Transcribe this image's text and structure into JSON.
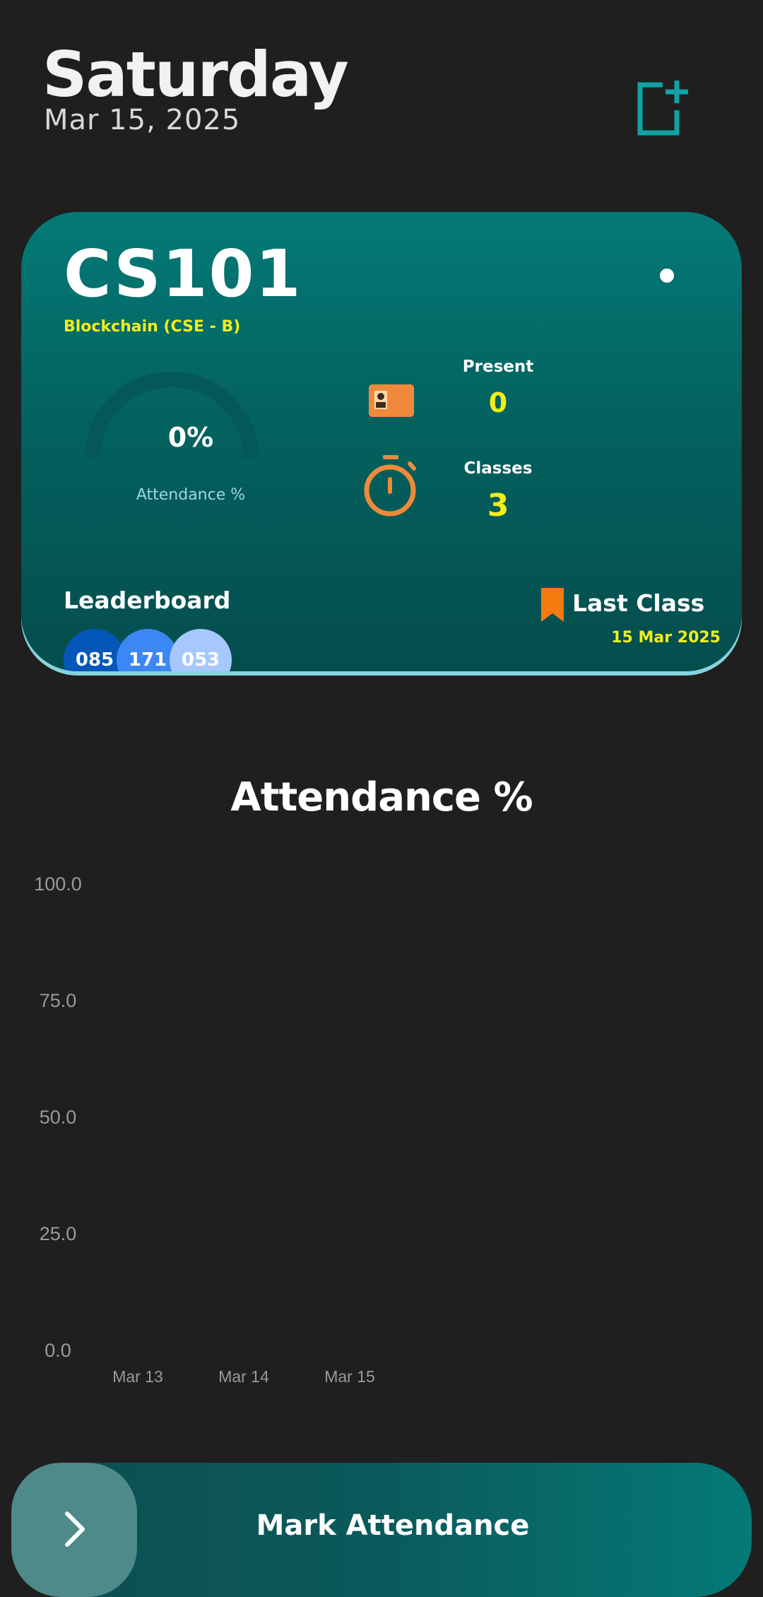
{
  "header": {
    "day": "Saturday",
    "date": "Mar 15, 2025",
    "add_icon": "add-box-icon"
  },
  "card": {
    "course_code": "CS101",
    "course_name": "Blockchain (CSE - B)",
    "attendance_percent": 0,
    "attendance_percent_text": "0%",
    "attendance_label": "Attendance %",
    "present_label": "Present",
    "present_value": "0",
    "classes_label": "Classes",
    "classes_value": "3",
    "leaderboard_label": "Leaderboard",
    "leaderboard": [
      "085",
      "171",
      "053"
    ],
    "last_class_label": "Last Class",
    "last_class_date": "15 Mar 2025",
    "colors": {
      "accent": "#f2ee1a",
      "icon_orange": "#f08a3a"
    }
  },
  "chart": {
    "title": "Attendance %"
  },
  "chart_data": {
    "type": "line",
    "title": "Attendance %",
    "categories": [
      "Mar 13",
      "Mar 14",
      "Mar 15"
    ],
    "y_ticks": [
      "100.0",
      "75.0",
      "50.0",
      "25.0",
      "0.0"
    ],
    "ylim": [
      0,
      100
    ],
    "series": [],
    "grid": false
  },
  "bottom": {
    "label": "Mark Attendance",
    "knob_icon": "chevron-right-icon"
  }
}
